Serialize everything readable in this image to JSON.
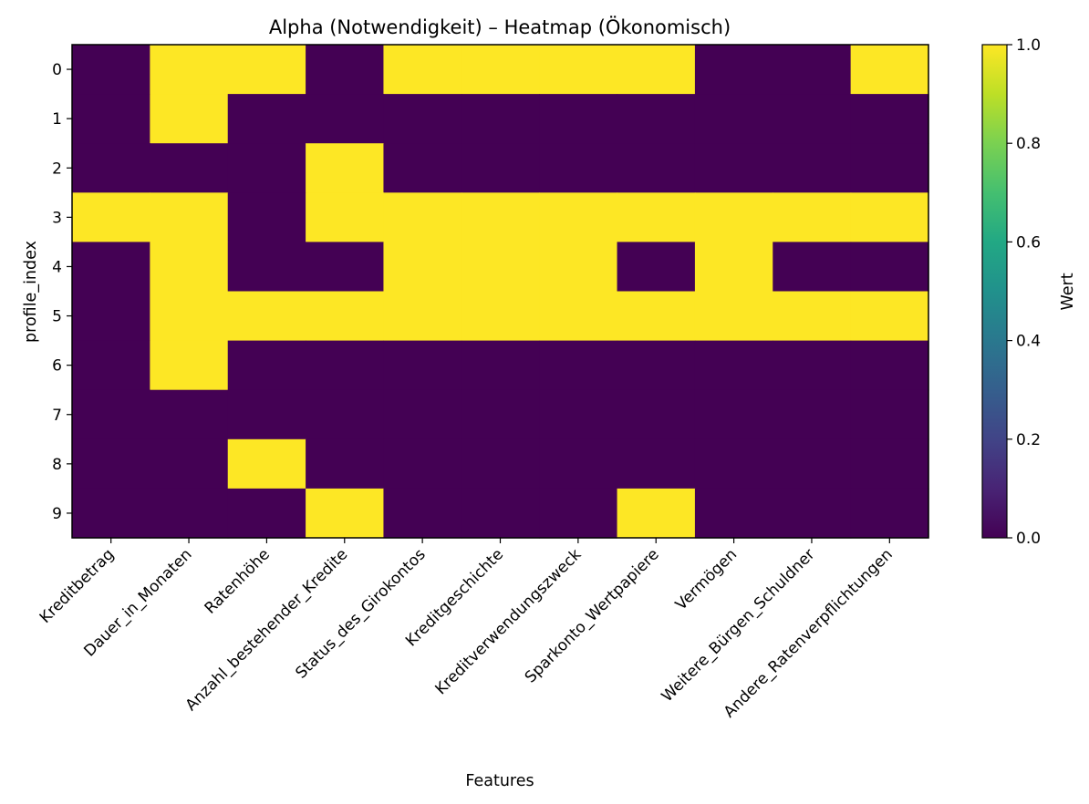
{
  "chart_data": {
    "type": "heatmap",
    "title": "Alpha (Notwendigkeit) – Heatmap (Ökonomisch)",
    "xlabel": "Features",
    "ylabel": "profile_index",
    "columns": [
      "Kreditbetrag",
      "Dauer_in_Monaten",
      "Ratenhöhe",
      "Anzahl_bestehender_Kredite",
      "Status_des_Girokontos",
      "Kreditgeschichte",
      "Kreditverwendungszweck",
      "Sparkonto_Wertpapiere",
      "Vermögen",
      "Weitere_Bürgen_Schuldner",
      "Andere_Ratenverpflichtungen"
    ],
    "rows": [
      "0",
      "1",
      "2",
      "3",
      "4",
      "5",
      "6",
      "7",
      "8",
      "9"
    ],
    "values": [
      [
        0,
        1,
        1,
        0,
        1,
        1,
        1,
        1,
        0,
        0,
        1
      ],
      [
        0,
        1,
        0,
        0,
        0,
        0,
        0,
        0,
        0,
        0,
        0
      ],
      [
        0,
        0,
        0,
        1,
        0,
        0,
        0,
        0,
        0,
        0,
        0
      ],
      [
        1,
        1,
        0,
        1,
        1,
        1,
        1,
        1,
        1,
        1,
        1
      ],
      [
        0,
        1,
        0,
        0,
        1,
        1,
        1,
        0,
        1,
        0,
        0
      ],
      [
        0,
        1,
        1,
        1,
        1,
        1,
        1,
        1,
        1,
        1,
        1
      ],
      [
        0,
        1,
        0,
        0,
        0,
        0,
        0,
        0,
        0,
        0,
        0
      ],
      [
        0,
        0,
        0,
        0,
        0,
        0,
        0,
        0,
        0,
        0,
        0
      ],
      [
        0,
        0,
        1,
        0,
        0,
        0,
        0,
        0,
        0,
        0,
        0
      ],
      [
        0,
        0,
        0,
        1,
        0,
        0,
        0,
        1,
        0,
        0,
        0
      ]
    ],
    "colormap": "viridis",
    "vmin": 0.0,
    "vmax": 1.0,
    "colorbar_label": "Wert",
    "colorbar_ticks": [
      "0.0",
      "0.2",
      "0.4",
      "0.6",
      "0.8",
      "1.0"
    ],
    "grid": false
  }
}
